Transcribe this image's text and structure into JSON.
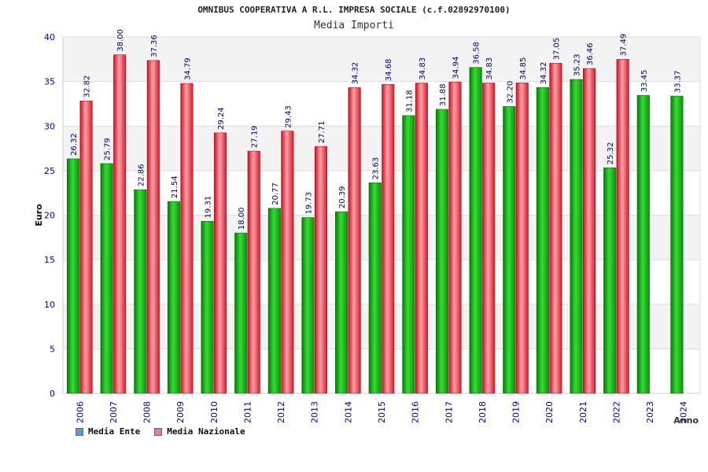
{
  "chart_data": {
    "type": "bar",
    "title": "OMNIBUS COOPERATIVA A R.L. IMPRESA SOCIALE (c.f.02892970100)",
    "subtitle": "Media Importi",
    "xlabel": "Anno",
    "ylabel": "Euro",
    "ylim": [
      0,
      40
    ],
    "yticks": [
      "0",
      "5",
      "10",
      "15",
      "20",
      "25",
      "30",
      "35",
      "40"
    ],
    "categories": [
      "2006",
      "2007",
      "2008",
      "2009",
      "2010",
      "2011",
      "2012",
      "2013",
      "2014",
      "2015",
      "2016",
      "2017",
      "2018",
      "2019",
      "2020",
      "2021",
      "2022",
      "2023",
      "2024"
    ],
    "series": [
      {
        "name": "Media Ente",
        "color": "#1fb51f",
        "legend_color": "#5b9bd5",
        "values": [
          26.32,
          25.79,
          22.86,
          21.54,
          19.31,
          18.0,
          20.77,
          19.73,
          20.39,
          23.63,
          31.18,
          31.88,
          36.58,
          32.2,
          34.32,
          35.23,
          25.32,
          33.45,
          33.37
        ],
        "labels": [
          "26.32",
          "25.79",
          "22.86",
          "21.54",
          "19.31",
          "18.00",
          "20.77",
          "19.73",
          "20.39",
          "23.63",
          "31.18",
          "31.88",
          "36.58",
          "32.20",
          "34.32",
          "35.23",
          "25.32",
          "33.45",
          "33.37"
        ]
      },
      {
        "name": "Media Nazionale",
        "color": "#ee3344",
        "legend_color": "#e07ab0",
        "values": [
          32.82,
          38.0,
          37.36,
          34.79,
          29.24,
          27.19,
          29.43,
          27.71,
          34.32,
          34.68,
          34.83,
          34.94,
          34.83,
          34.85,
          37.05,
          36.46,
          37.49,
          null,
          null
        ],
        "labels": [
          "32.82",
          "38.00",
          "37.36",
          "34.79",
          "29.24",
          "27.19",
          "29.43",
          "27.71",
          "34.32",
          "34.68",
          "34.83",
          "34.94",
          "34.83",
          "34.85",
          "37.05",
          "36.46",
          "37.49",
          null,
          null
        ]
      }
    ],
    "legend_position": "bottom-left",
    "grid": true
  }
}
